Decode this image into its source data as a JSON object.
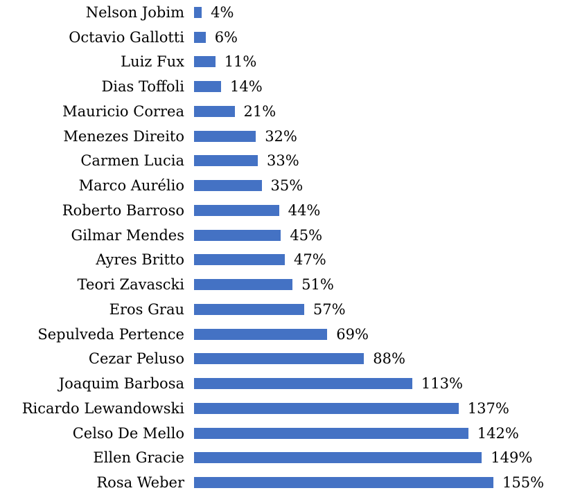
{
  "chart_data": {
    "type": "bar",
    "orientation": "horizontal",
    "categories": [
      "Nelson Jobim",
      "Octavio Gallotti",
      "Luiz Fux",
      "Dias Toffoli",
      "Mauricio Correa",
      "Menezes Direito",
      "Carmen Lucia",
      "Marco Aurélio",
      "Roberto Barroso",
      "Gilmar Mendes",
      "Ayres Britto",
      "Teori Zavascki",
      "Eros Grau",
      "Sepulveda Pertence",
      "Cezar Peluso",
      "Joaquim Barbosa",
      "Ricardo Lewandowski",
      "Celso De Mello",
      "Ellen Gracie",
      "Rosa Weber"
    ],
    "values": [
      4,
      6,
      11,
      14,
      21,
      32,
      33,
      35,
      44,
      45,
      47,
      51,
      57,
      69,
      88,
      113,
      137,
      142,
      149,
      155
    ],
    "value_labels": [
      "4%",
      "6%",
      "11%",
      "14%",
      "21%",
      "32%",
      "33%",
      "35%",
      "44%",
      "45%",
      "47%",
      "51%",
      "57%",
      "69%",
      "88%",
      "113%",
      "137%",
      "142%",
      "149%",
      "155%"
    ],
    "unit": "%",
    "bar_color": "#4472C4",
    "label_color": "#000000",
    "background_color": "#FFFFFF",
    "xlim": [
      0,
      155
    ],
    "grid": false,
    "legend": "none",
    "axes_visible": false
  }
}
